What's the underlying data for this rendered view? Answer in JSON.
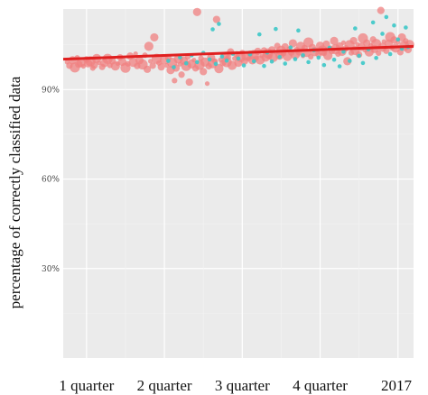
{
  "chart_data": {
    "type": "scatter",
    "title": "",
    "xlabel": "",
    "ylabel": "percentage of correctly classified data",
    "x_categories": [
      "1 quarter",
      "2 quarter",
      "3 quarter",
      "4 quarter",
      "2017"
    ],
    "xlim": [
      0.7,
      5.2
    ],
    "ylim": [
      0,
      117
    ],
    "y_ticks": [
      {
        "value": 30,
        "label": "30%"
      },
      {
        "value": 60,
        "label": "60%"
      },
      {
        "value": 90,
        "label": "90%"
      }
    ],
    "grid": true,
    "legend": "none",
    "colors": {
      "panel_background": "#ebebeb",
      "grid_major": "#ffffff",
      "grid_minor": "#f3f3f3",
      "series_a": "#f08080",
      "series_b": "#3cc8c8",
      "trend": "#e02020"
    },
    "trend_line": {
      "x": [
        0.7,
        5.2
      ],
      "y": [
        100.2,
        104.5
      ]
    },
    "series": [
      {
        "color_key": "series_a",
        "points": [
          [
            0.75,
            99.2
          ],
          [
            0.78,
            98.0
          ],
          [
            0.82,
            99.8
          ],
          [
            0.85,
            97.4
          ],
          [
            0.88,
            100.6
          ],
          [
            0.9,
            98.5
          ],
          [
            0.93,
            99.0
          ],
          [
            0.96,
            97.8
          ],
          [
            1.0,
            100.1
          ],
          [
            1.02,
            98.8
          ],
          [
            1.05,
            99.5
          ],
          [
            1.08,
            97.2
          ],
          [
            1.1,
            98.2
          ],
          [
            1.13,
            100.4
          ],
          [
            1.16,
            99.0
          ],
          [
            1.2,
            97.6
          ],
          [
            1.23,
            98.9
          ],
          [
            1.27,
            100.3
          ],
          [
            1.3,
            98.1
          ],
          [
            1.33,
            99.6
          ],
          [
            1.37,
            97.9
          ],
          [
            1.4,
            98.7
          ],
          [
            1.43,
            100.8
          ],
          [
            1.46,
            99.3
          ],
          [
            1.5,
            97.3
          ],
          [
            1.53,
            98.6
          ],
          [
            1.56,
            101.2
          ],
          [
            1.6,
            99.1
          ],
          [
            1.63,
            102.0
          ],
          [
            1.65,
            97.9
          ],
          [
            1.68,
            99.8
          ],
          [
            1.72,
            98.4
          ],
          [
            1.75,
            101.5
          ],
          [
            1.78,
            96.8
          ],
          [
            1.8,
            104.5
          ],
          [
            1.82,
            99.5
          ],
          [
            1.85,
            98.0
          ],
          [
            1.87,
            107.5
          ],
          [
            1.9,
            100.3
          ],
          [
            1.93,
            98.9
          ],
          [
            1.96,
            97.6
          ],
          [
            2.0,
            99.9
          ],
          [
            2.03,
            98.1
          ],
          [
            2.05,
            100.6
          ],
          [
            2.08,
            96.5
          ],
          [
            2.1,
            99.0
          ],
          [
            2.13,
            93.0
          ],
          [
            2.15,
            97.2
          ],
          [
            2.18,
            100.2
          ],
          [
            2.2,
            98.5
          ],
          [
            2.22,
            95.0
          ],
          [
            2.25,
            99.7
          ],
          [
            2.28,
            97.9
          ],
          [
            2.3,
            100.9
          ],
          [
            2.32,
            92.5
          ],
          [
            2.35,
            98.6
          ],
          [
            2.38,
            99.9
          ],
          [
            2.4,
            97.1
          ],
          [
            2.42,
            116.0
          ],
          [
            2.45,
            98.3
          ],
          [
            2.47,
            100.5
          ],
          [
            2.5,
            96.0
          ],
          [
            2.52,
            99.2
          ],
          [
            2.55,
            92.0
          ],
          [
            2.57,
            97.8
          ],
          [
            2.6,
            100.7
          ],
          [
            2.62,
            98.8
          ],
          [
            2.65,
            99.5
          ],
          [
            2.67,
            113.5
          ],
          [
            2.7,
            97.0
          ],
          [
            2.72,
            100.0
          ],
          [
            2.75,
            98.9
          ],
          [
            2.78,
            101.3
          ],
          [
            2.8,
            99.2
          ],
          [
            2.82,
            100.8
          ],
          [
            2.85,
            102.6
          ],
          [
            2.87,
            98.1
          ],
          [
            2.9,
            100.4
          ],
          [
            2.93,
            101.8
          ],
          [
            2.95,
            99.0
          ],
          [
            2.98,
            100.9
          ],
          [
            3.0,
            102.4
          ],
          [
            3.03,
            99.6
          ],
          [
            3.05,
            101.2
          ],
          [
            3.08,
            100.3
          ],
          [
            3.1,
            102.0
          ],
          [
            3.13,
            99.8
          ],
          [
            3.15,
            101.6
          ],
          [
            3.18,
            100.5
          ],
          [
            3.2,
            102.8
          ],
          [
            3.23,
            99.9
          ],
          [
            3.25,
            101.3
          ],
          [
            3.28,
            103.1
          ],
          [
            3.3,
            100.7
          ],
          [
            3.33,
            102.1
          ],
          [
            3.35,
            101.0
          ],
          [
            3.38,
            103.3
          ],
          [
            3.4,
            100.8
          ],
          [
            3.43,
            102.5
          ],
          [
            3.45,
            104.6
          ],
          [
            3.48,
            101.4
          ],
          [
            3.5,
            103.0
          ],
          [
            3.53,
            102.0
          ],
          [
            3.55,
            104.3
          ],
          [
            3.58,
            101.1
          ],
          [
            3.6,
            103.7
          ],
          [
            3.63,
            102.4
          ],
          [
            3.65,
            105.5
          ],
          [
            3.68,
            101.9
          ],
          [
            3.7,
            103.4
          ],
          [
            3.73,
            102.6
          ],
          [
            3.75,
            104.5
          ],
          [
            3.78,
            101.3
          ],
          [
            3.8,
            103.9
          ],
          [
            3.83,
            102.3
          ],
          [
            3.85,
            105.8
          ],
          [
            3.88,
            101.0
          ],
          [
            3.9,
            104.1
          ],
          [
            3.93,
            102.7
          ],
          [
            3.95,
            103.3
          ],
          [
            3.98,
            101.8
          ],
          [
            4.0,
            104.7
          ],
          [
            4.03,
            103.1
          ],
          [
            4.05,
            102.1
          ],
          [
            4.08,
            105.2
          ],
          [
            4.1,
            101.4
          ],
          [
            4.13,
            104.0
          ],
          [
            4.15,
            102.9
          ],
          [
            4.18,
            106.3
          ],
          [
            4.2,
            103.5
          ],
          [
            4.23,
            101.9
          ],
          [
            4.25,
            104.6
          ],
          [
            4.28,
            102.8
          ],
          [
            4.3,
            105.7
          ],
          [
            4.33,
            103.8
          ],
          [
            4.35,
            99.5
          ],
          [
            4.38,
            104.9
          ],
          [
            4.4,
            102.3
          ],
          [
            4.43,
            106.4
          ],
          [
            4.45,
            103.1
          ],
          [
            4.48,
            105.1
          ],
          [
            4.5,
            101.7
          ],
          [
            4.53,
            104.3
          ],
          [
            4.55,
            107.2
          ],
          [
            4.58,
            103.3
          ],
          [
            4.6,
            105.6
          ],
          [
            4.63,
            102.6
          ],
          [
            4.65,
            104.8
          ],
          [
            4.68,
            106.8
          ],
          [
            4.7,
            103.6
          ],
          [
            4.72,
            105.3
          ],
          [
            4.75,
            102.2
          ],
          [
            4.78,
            116.5
          ],
          [
            4.8,
            104.2
          ],
          [
            4.82,
            106.1
          ],
          [
            4.85,
            103.0
          ],
          [
            4.88,
            105.4
          ],
          [
            4.9,
            107.6
          ],
          [
            4.92,
            104.0
          ],
          [
            4.95,
            106.6
          ],
          [
            4.97,
            103.9
          ],
          [
            5.0,
            105.9
          ],
          [
            5.03,
            102.5
          ],
          [
            5.05,
            107.5
          ],
          [
            5.08,
            104.6
          ],
          [
            5.1,
            106.3
          ],
          [
            5.13,
            103.4
          ],
          [
            5.15,
            105.1
          ]
        ]
      },
      {
        "color_key": "series_b",
        "points": [
          [
            2.05,
            99.6
          ],
          [
            2.12,
            97.5
          ],
          [
            2.2,
            100.8
          ],
          [
            2.28,
            98.8
          ],
          [
            2.35,
            101.5
          ],
          [
            2.42,
            99.2
          ],
          [
            2.5,
            102.3
          ],
          [
            2.58,
            100.1
          ],
          [
            2.62,
            110.2
          ],
          [
            2.66,
            98.6
          ],
          [
            2.7,
            112.0
          ],
          [
            2.74,
            101.1
          ],
          [
            2.8,
            99.7
          ],
          [
            2.88,
            102.0
          ],
          [
            2.95,
            100.4
          ],
          [
            3.02,
            98.1
          ],
          [
            3.1,
            101.8
          ],
          [
            3.15,
            99.5
          ],
          [
            3.22,
            108.5
          ],
          [
            3.28,
            97.9
          ],
          [
            3.32,
            102.4
          ],
          [
            3.38,
            99.4
          ],
          [
            3.43,
            110.3
          ],
          [
            3.48,
            100.9
          ],
          [
            3.55,
            98.7
          ],
          [
            3.62,
            104.1
          ],
          [
            3.68,
            100.2
          ],
          [
            3.72,
            109.8
          ],
          [
            3.78,
            101.5
          ],
          [
            3.85,
            99.2
          ],
          [
            3.92,
            103.2
          ],
          [
            3.98,
            100.7
          ],
          [
            4.05,
            98.2
          ],
          [
            4.12,
            104.0
          ],
          [
            4.18,
            100.0
          ],
          [
            4.25,
            97.8
          ],
          [
            4.3,
            102.7
          ],
          [
            4.38,
            99.6
          ],
          [
            4.45,
            110.5
          ],
          [
            4.5,
            101.3
          ],
          [
            4.55,
            98.9
          ],
          [
            4.62,
            103.5
          ],
          [
            4.68,
            112.5
          ],
          [
            4.72,
            100.6
          ],
          [
            4.8,
            108.7
          ],
          [
            4.85,
            114.3
          ],
          [
            4.9,
            101.9
          ],
          [
            4.95,
            111.5
          ],
          [
            5.0,
            106.8
          ],
          [
            5.05,
            103.7
          ],
          [
            5.1,
            110.8
          ],
          [
            5.13,
            104.3
          ]
        ]
      }
    ]
  }
}
